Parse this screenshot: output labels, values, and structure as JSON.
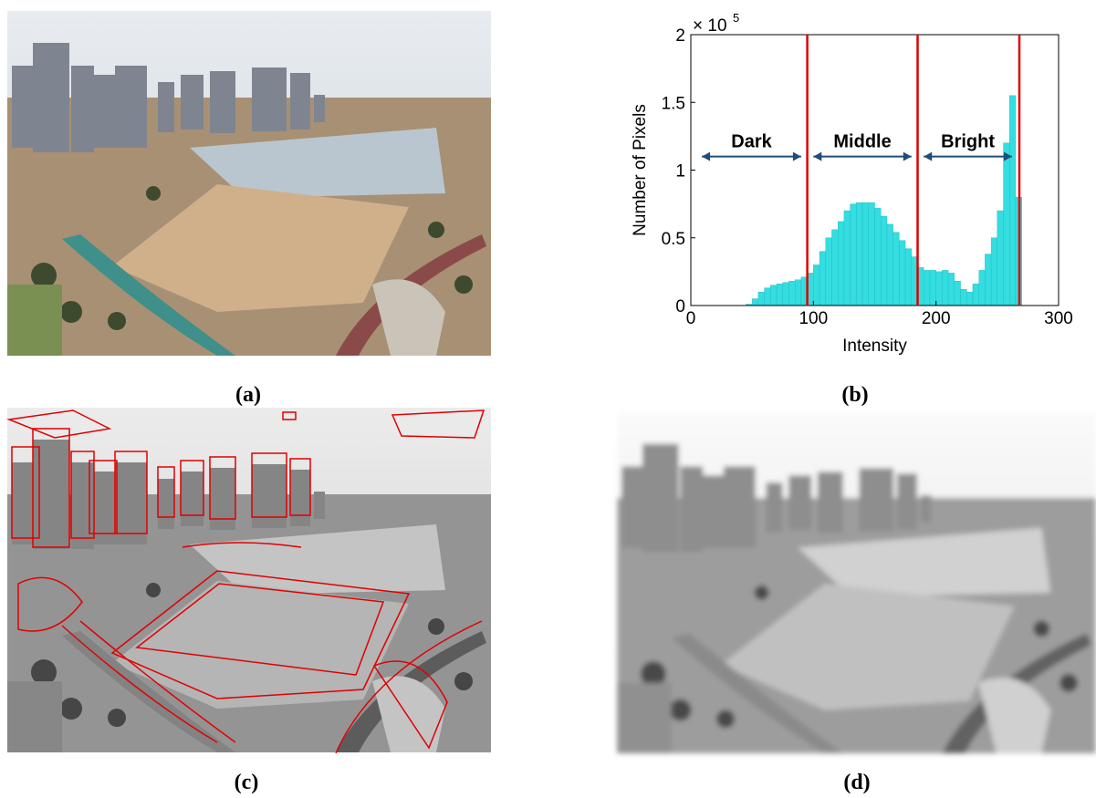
{
  "chart_data": {
    "type": "histogram",
    "x_label": "Intensity",
    "y_label": "Number of Pixels",
    "y_multiplier": "× 10",
    "y_exponent": "5",
    "bins": [
      10,
      15,
      20,
      25,
      30,
      35,
      40,
      45,
      50,
      55,
      60,
      65,
      70,
      75,
      80,
      85,
      90,
      95,
      100,
      105,
      110,
      115,
      120,
      125,
      130,
      135,
      140,
      145,
      150,
      155,
      160,
      165,
      170,
      175,
      180,
      185,
      190,
      195,
      200,
      205,
      210,
      215,
      220,
      225,
      230,
      235,
      240,
      245,
      250,
      255,
      260,
      265,
      270
    ],
    "values": [
      0,
      0,
      0,
      0,
      0,
      0,
      0,
      0.01,
      0.05,
      0.1,
      0.13,
      0.15,
      0.16,
      0.17,
      0.18,
      0.19,
      0.21,
      0.24,
      0.3,
      0.4,
      0.5,
      0.56,
      0.62,
      0.7,
      0.75,
      0.76,
      0.76,
      0.76,
      0.72,
      0.66,
      0.6,
      0.54,
      0.48,
      0.42,
      0.36,
      0.28,
      0.26,
      0.26,
      0.25,
      0.26,
      0.24,
      0.18,
      0.12,
      0.1,
      0.16,
      0.26,
      0.38,
      0.5,
      0.7,
      1.2,
      1.55,
      0.8
    ],
    "color": "#33dde0",
    "xlim": [
      0,
      300
    ],
    "xticks": [
      0,
      100,
      200,
      300
    ],
    "ylim": [
      0,
      2
    ],
    "yticks": [
      0,
      0.5,
      1,
      1.5,
      2
    ],
    "thresholds": [
      95,
      185,
      268
    ],
    "threshold_color": "#e00000",
    "regions": [
      {
        "label": "Dark",
        "from": 9,
        "to": 90
      },
      {
        "label": "Middle",
        "from": 100,
        "to": 180
      },
      {
        "label": "Bright",
        "from": 190,
        "to": 262
      }
    ],
    "region_y": 1.1
  },
  "panel_labels": [
    "(a)",
    "(b)",
    "(c)",
    "(d)"
  ]
}
